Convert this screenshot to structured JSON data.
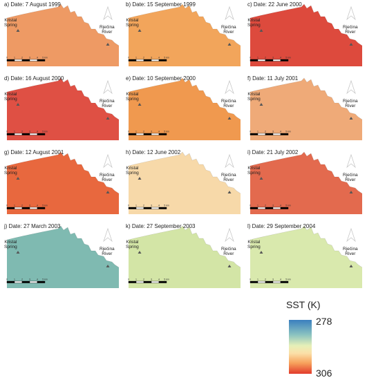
{
  "panels": [
    {
      "title": "a) Date: 7 August 1999",
      "color": "#ee9a64"
    },
    {
      "title": "b) Date: 15 September 1999",
      "color": "#f2a55b"
    },
    {
      "title": "c) Date: 22 June 2000",
      "color": "#dd4a3d"
    },
    {
      "title": "d) Date: 16 August 2000",
      "color": "#df5044"
    },
    {
      "title": "e) Date: 10 September 2000",
      "color": "#f0994f"
    },
    {
      "title": "f) Date: 11 July 2001",
      "color": "#efaa78"
    },
    {
      "title": "g) Date: 12 August 2001",
      "color": "#e8683e"
    },
    {
      "title": "h) Date: 12 June 2002",
      "color": "#f7d9a9"
    },
    {
      "title": "i) Date: 21 July 2002",
      "color": "#e36a4e"
    },
    {
      "title": "j) Date: 27 March 2003",
      "color": "#7fbab1"
    },
    {
      "title": "k) Date: 27 September 2003",
      "color": "#d3e5a6"
    },
    {
      "title": "l) Date: 29 September 2004",
      "color": "#d9e9ad"
    }
  ],
  "labels": {
    "kristal_line1": "Kristal",
    "kristal_line2": "Spring",
    "rjecina_line1": "Rječina",
    "rjecina_line2": "River"
  },
  "scale": {
    "ticks": [
      "0",
      "1",
      "2",
      "3",
      "4",
      "5 km"
    ]
  },
  "legend": {
    "title": "SST (K)",
    "max": "278",
    "min": "306",
    "colors": [
      "#3a7fbf",
      "#8cc4c0",
      "#e6f0b8",
      "#fbe0a8",
      "#f7a25c",
      "#e23a2b"
    ]
  }
}
